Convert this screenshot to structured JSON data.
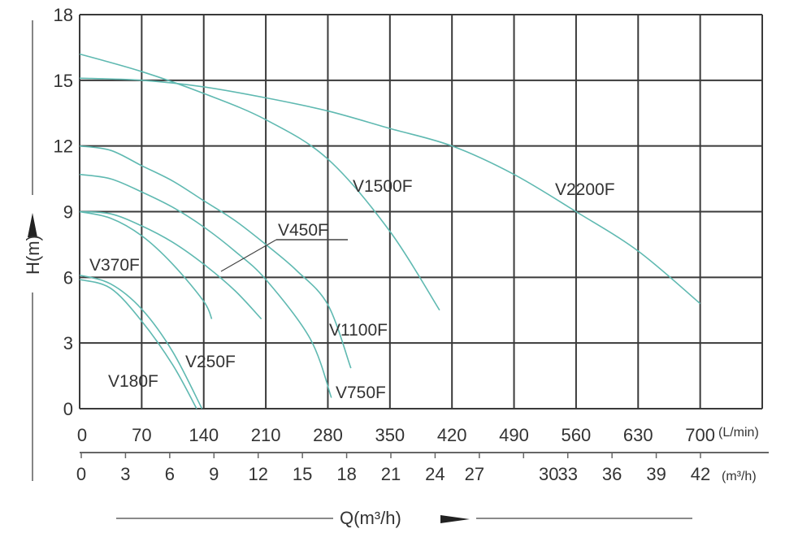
{
  "chart_data": {
    "type": "line",
    "title": "",
    "ylabel": "H(m)",
    "xlabel": "Q(m³/h)",
    "ylim": [
      0,
      18
    ],
    "xlim": [
      0,
      770
    ],
    "x_units_primary": "(L/min)",
    "x_units_secondary": "(m³/h)",
    "grid": true,
    "y_ticks": [
      "0",
      "3",
      "6",
      "9",
      "12",
      "15",
      "18"
    ],
    "x_ticks_lmin": [
      "0",
      "70",
      "140",
      "210",
      "280",
      "350",
      "420",
      "490",
      "560",
      "630",
      "700"
    ],
    "x_ticks_m3h": [
      "0",
      "3",
      "6",
      "9",
      "12",
      "15",
      "18",
      "21",
      "24",
      "27",
      "30",
      "33",
      "36",
      "39",
      "42"
    ],
    "line_color": "#5fb9b1",
    "series": [
      {
        "name": "V180F",
        "points": [
          [
            0,
            5.9
          ],
          [
            35,
            5.5
          ],
          [
            70,
            4.0
          ],
          [
            105,
            2.0
          ],
          [
            132,
            0
          ]
        ]
      },
      {
        "name": "V250F",
        "points": [
          [
            0,
            6.1
          ],
          [
            35,
            5.7
          ],
          [
            70,
            4.55
          ],
          [
            105,
            2.6
          ],
          [
            138,
            0
          ]
        ]
      },
      {
        "name": "V370F",
        "points": [
          [
            0,
            9.0
          ],
          [
            35,
            8.7
          ],
          [
            70,
            7.9
          ],
          [
            105,
            6.6
          ],
          [
            140,
            4.9
          ],
          [
            149,
            4.1
          ]
        ]
      },
      {
        "name": "V450F",
        "points": [
          [
            0,
            9.0
          ],
          [
            35,
            8.9
          ],
          [
            70,
            8.35
          ],
          [
            105,
            7.6
          ],
          [
            140,
            6.6
          ],
          [
            175,
            5.4
          ],
          [
            205,
            4.1
          ]
        ]
      },
      {
        "name": "V750F",
        "points": [
          [
            0,
            10.7
          ],
          [
            35,
            10.5
          ],
          [
            70,
            9.9
          ],
          [
            105,
            9.2
          ],
          [
            140,
            8.3
          ],
          [
            175,
            7.2
          ],
          [
            210,
            5.9
          ],
          [
            260,
            3.2
          ],
          [
            284,
            0.5
          ]
        ]
      },
      {
        "name": "V1100F",
        "points": [
          [
            0,
            12.0
          ],
          [
            35,
            11.8
          ],
          [
            70,
            11.1
          ],
          [
            105,
            10.4
          ],
          [
            140,
            9.5
          ],
          [
            175,
            8.6
          ],
          [
            210,
            7.5
          ],
          [
            245,
            6.3
          ],
          [
            280,
            4.75
          ],
          [
            306,
            1.85
          ]
        ]
      },
      {
        "name": "V1500F",
        "points": [
          [
            0,
            16.2
          ],
          [
            70,
            15.4
          ],
          [
            140,
            14.4
          ],
          [
            210,
            13.2
          ],
          [
            280,
            11.4
          ],
          [
            350,
            8.1
          ],
          [
            406,
            4.5
          ]
        ]
      },
      {
        "name": "V2200F",
        "points": [
          [
            0,
            15.1
          ],
          [
            70,
            15.0
          ],
          [
            140,
            14.7
          ],
          [
            210,
            14.2
          ],
          [
            280,
            13.6
          ],
          [
            350,
            12.8
          ],
          [
            420,
            12.0
          ],
          [
            490,
            10.7
          ],
          [
            560,
            9.0
          ],
          [
            630,
            7.2
          ],
          [
            700,
            4.8
          ]
        ]
      }
    ]
  }
}
